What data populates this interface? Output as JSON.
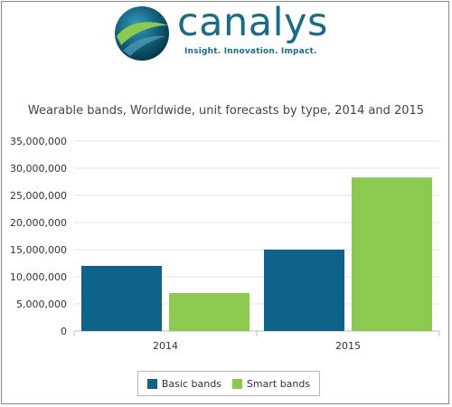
{
  "logo": {
    "wordmark": "canalys",
    "tagline": "Insight. Innovation. Impact."
  },
  "colors": {
    "brand": "#1a6b84",
    "basic": "#0f6289",
    "smart": "#8cc950"
  },
  "chart_data": {
    "type": "bar",
    "title": "Wearable bands, Worldwide, unit forecasts by type, 2014 and 2015",
    "categories": [
      "2014",
      "2015"
    ],
    "series": [
      {
        "name": "Basic bands",
        "values": [
          12000000,
          15000000
        ]
      },
      {
        "name": "Smart bands",
        "values": [
          7000000,
          28300000
        ]
      }
    ],
    "ylim": [
      0,
      35000000
    ],
    "yticks": [
      "0",
      "5,000,000",
      "10,000,000",
      "15,000,000",
      "20,000,000",
      "25,000,000",
      "30,000,000",
      "35,000,000"
    ],
    "grid": true,
    "legend_position": "bottom"
  }
}
